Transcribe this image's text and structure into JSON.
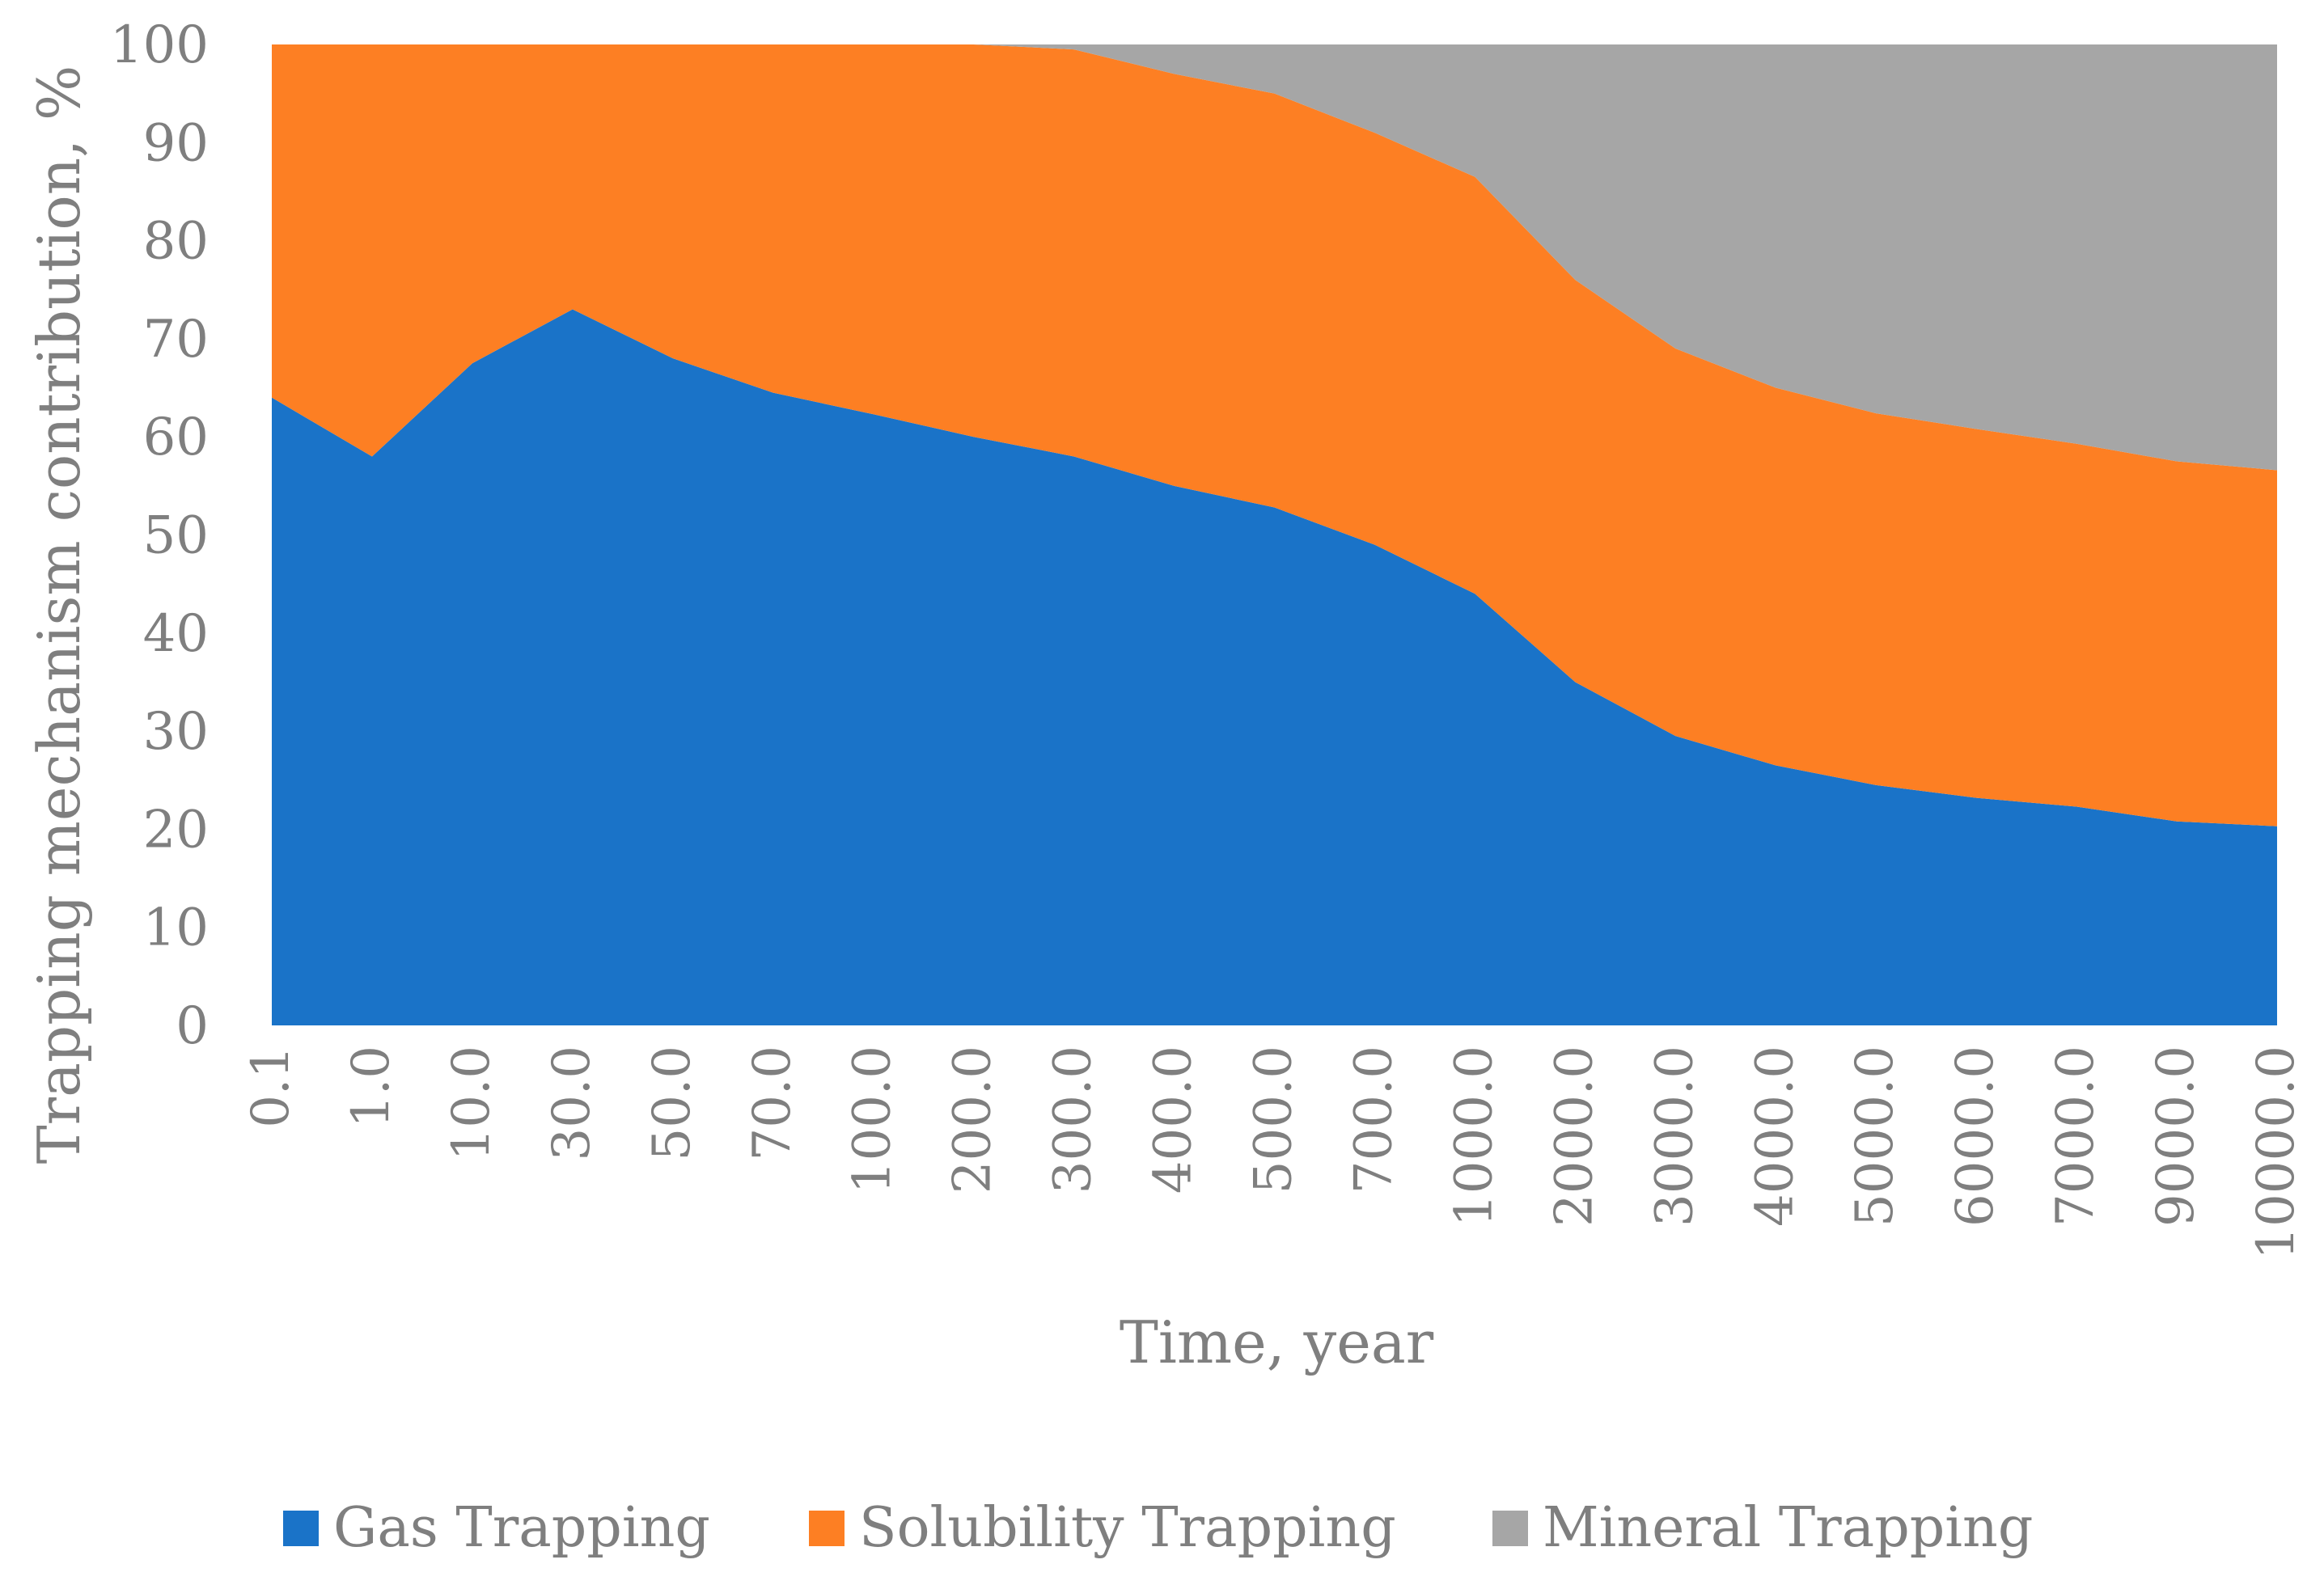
{
  "chart_data": {
    "type": "area",
    "stacked": true,
    "title": "",
    "xlabel": "Time, year",
    "ylabel": "Trapping mechanism contribution, %",
    "ylim": [
      0,
      100
    ],
    "yticks": [
      "0",
      "10",
      "20",
      "30",
      "40",
      "50",
      "60",
      "70",
      "80",
      "90",
      "100"
    ],
    "categories": [
      "0.1",
      "1.0",
      "10.0",
      "30.0",
      "50.0",
      "70.0",
      "100.0",
      "200.0",
      "300.0",
      "400.0",
      "500.0",
      "700.0",
      "1000.0",
      "2000.0",
      "3000.0",
      "4000.0",
      "5000.0",
      "6000.0",
      "7000.0",
      "9000.0",
      "10000.0"
    ],
    "legend_position": "bottom",
    "series": [
      {
        "name": "Gas Trapping",
        "color": "#1a73c8",
        "values": [
          64,
          58,
          67.5,
          73,
          68,
          64.5,
          62.3,
          60,
          58,
          55,
          52.8,
          49,
          44,
          35,
          29.5,
          26.5,
          24.5,
          23.2,
          22.3,
          20.8,
          20.3
        ]
      },
      {
        "name": "Solubility Trapping",
        "color": "#fd7f23",
        "values": [
          36,
          42,
          32.5,
          27,
          32,
          35.5,
          37.7,
          40,
          41.5,
          42,
          42.2,
          42,
          42.5,
          41,
          39.5,
          38.5,
          37.9,
          37.6,
          37,
          36.7,
          36.3
        ]
      },
      {
        "name": "Mineral Trapping",
        "color": "#a6a6a6",
        "values": [
          0,
          0,
          0,
          0,
          0,
          0,
          0,
          0,
          0.5,
          3,
          5,
          9,
          13.5,
          24,
          31,
          35,
          37.6,
          39.2,
          40.7,
          42.5,
          43.4
        ]
      }
    ]
  }
}
